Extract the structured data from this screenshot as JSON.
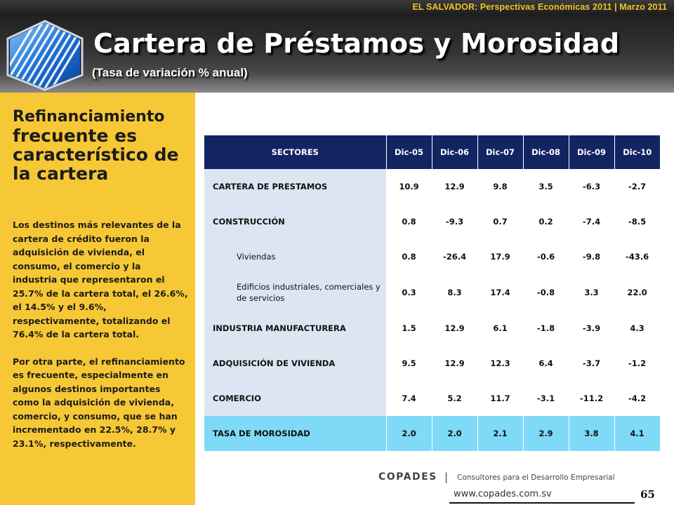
{
  "header": {
    "top_text": "EL SALVADOR: Perspectivas Económicas 2011 | Marzo 2011",
    "title": "Cartera de Préstamos y Morosidad",
    "subtitle": "(Tasa de variación % anual)"
  },
  "sidebar": {
    "headline_line1": "Refinanciamiento",
    "headline_rest": "frecuente es característico de la cartera",
    "paragraph1": "Los destinos más relevantes de la cartera de crédito fueron la adquisición de vivienda, el consumo, el comercio y la industria que representaron el 25.7% de la cartera total, el 26.6%, el 14.5% y el 9.6%, respectivamente, totalizando el 76.4% de la cartera total.",
    "paragraph2": "Por otra parte, el refinanciamiento es frecuente, especialmente en algunos destinos importantes como la adquisición de vivienda, comercio, y consumo, que se han incrementado en 22.5%, 28.7% y 23.1%, respectivamente."
  },
  "table": {
    "headers": [
      "SECTORES",
      "Dic-05",
      "Dic-06",
      "Dic-07",
      "Dic-08",
      "Dic-09",
      "Dic-10"
    ],
    "rows": [
      {
        "label": "CARTERA DE PRESTAMOS",
        "values": [
          "10.9",
          "12.9",
          "9.8",
          "3.5",
          "-6.3",
          "-2.7"
        ]
      },
      {
        "label": "CONSTRUCCIÓN",
        "values": [
          "0.8",
          "-9.3",
          "0.7",
          "0.2",
          "-7.4",
          "-8.5"
        ]
      },
      {
        "label": "Viviendas",
        "values": [
          "0.8",
          "-26.4",
          "17.9",
          "-0.6",
          "-9.8",
          "-43.6"
        ]
      },
      {
        "label": "Edificios industriales, comerciales y de servicios",
        "values": [
          "0.3",
          "8.3",
          "17.4",
          "-0.8",
          "3.3",
          "22.0"
        ]
      },
      {
        "label": "INDUSTRIA MANUFACTURERA",
        "values": [
          "1.5",
          "12.9",
          "6.1",
          "-1.8",
          "-3.9",
          "4.3"
        ]
      },
      {
        "label": "ADQUISICIÓN DE VIVIENDA",
        "values": [
          "9.5",
          "12.9",
          "12.3",
          "6.4",
          "-3.7",
          "-1.2"
        ]
      },
      {
        "label": "COMERCIO",
        "values": [
          "7.4",
          "5.2",
          "11.7",
          "-3.1",
          "-11.2",
          "-4.2"
        ]
      },
      {
        "label": "TASA DE MOROSIDAD",
        "values": [
          "2.0",
          "2.0",
          "2.1",
          "2.9",
          "3.8",
          "4.1"
        ]
      }
    ]
  },
  "footer": {
    "brand": "COPADES",
    "separator": "|",
    "tagline": "Consultores para el Desarrollo Empresarial",
    "website": "www.copades.com.sv",
    "page_number": "65"
  },
  "colors": {
    "panel": "#f7c835",
    "table_header": "#132463",
    "label_cell": "#dce5f1",
    "highlight_row": "#7fdaf7",
    "top_text": "#f0c32a"
  }
}
